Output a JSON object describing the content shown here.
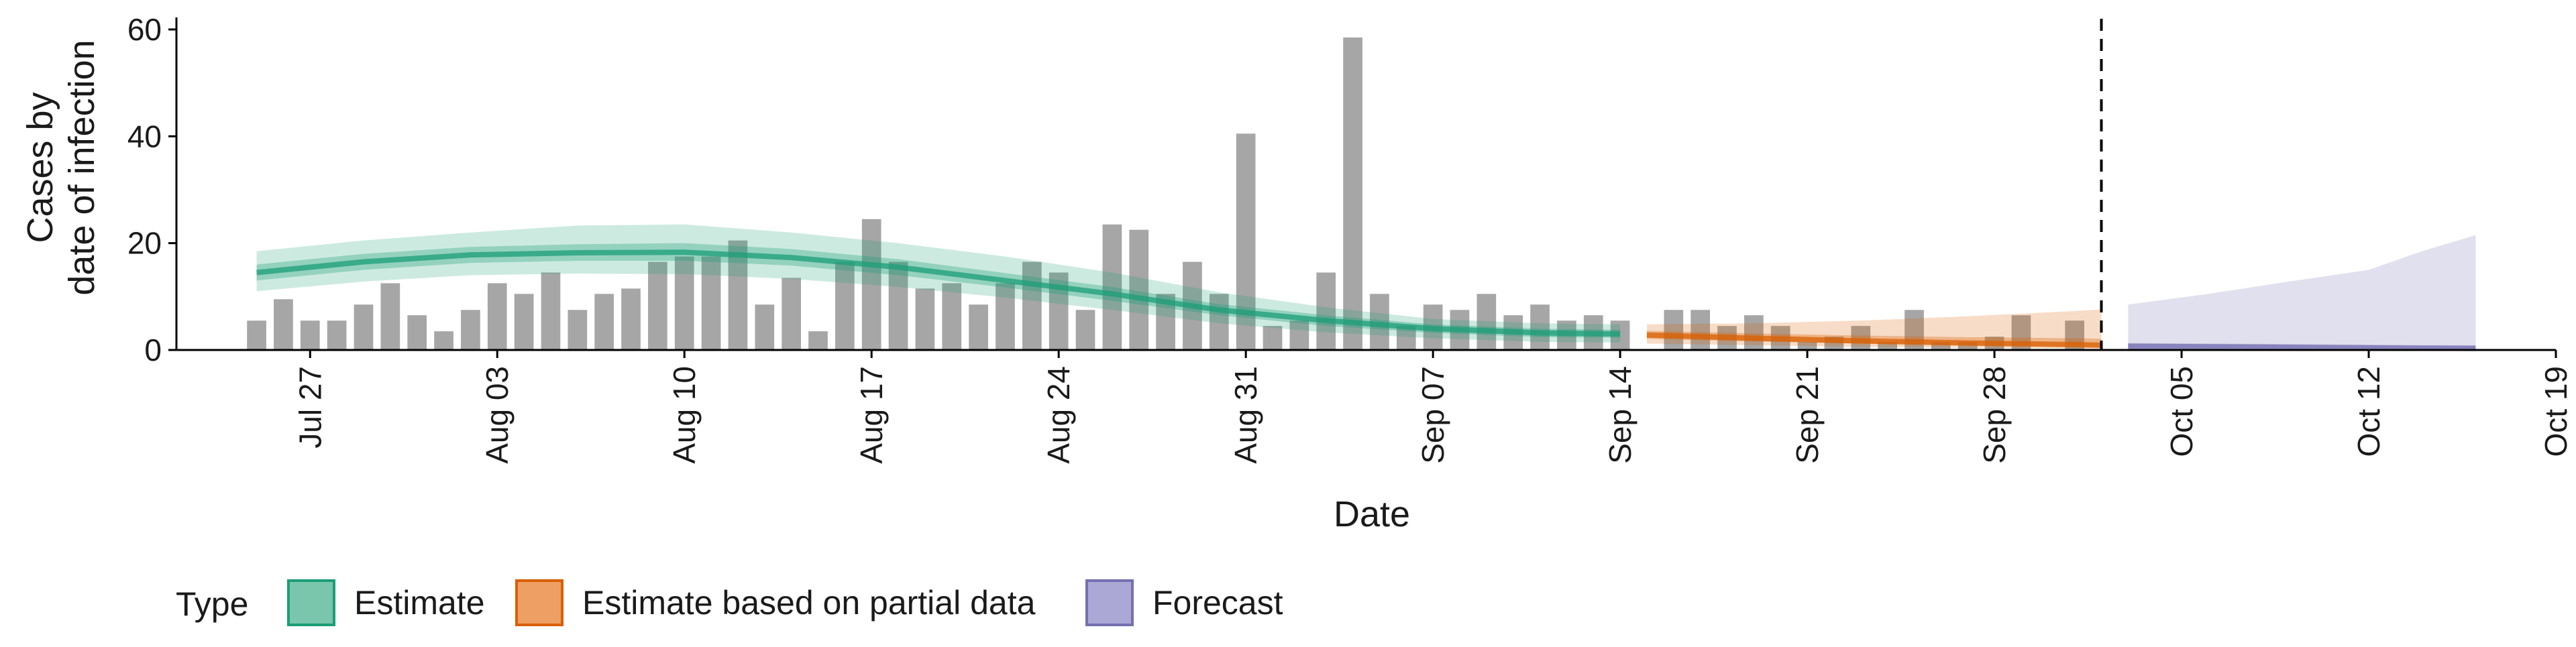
{
  "chart_data": {
    "type": "bar",
    "xlabel": "Date",
    "ylabel_lines": [
      "Cases by",
      "date of infection"
    ],
    "ylim": [
      0,
      62
    ],
    "y_ticks": [
      0,
      20,
      40,
      60
    ],
    "x_domain": [
      "2020-07-22",
      "2020-10-19"
    ],
    "x_ticks": [
      {
        "date": "2020-07-27",
        "label": "Jul 27"
      },
      {
        "date": "2020-08-03",
        "label": "Aug 03"
      },
      {
        "date": "2020-08-10",
        "label": "Aug 10"
      },
      {
        "date": "2020-08-17",
        "label": "Aug 17"
      },
      {
        "date": "2020-08-24",
        "label": "Aug 24"
      },
      {
        "date": "2020-08-31",
        "label": "Aug 31"
      },
      {
        "date": "2020-09-07",
        "label": "Sep 07"
      },
      {
        "date": "2020-09-14",
        "label": "Sep 14"
      },
      {
        "date": "2020-09-21",
        "label": "Sep 21"
      },
      {
        "date": "2020-09-28",
        "label": "Sep 28"
      },
      {
        "date": "2020-10-05",
        "label": "Oct 05"
      },
      {
        "date": "2020-10-12",
        "label": "Oct 12"
      },
      {
        "date": "2020-10-19",
        "label": "Oct 19"
      }
    ],
    "bars_start_date": "2020-07-25",
    "bar_values": [
      5.5,
      9.5,
      5.5,
      5.5,
      8.5,
      12.5,
      6.5,
      3.5,
      7.5,
      12.5,
      10.5,
      14.5,
      7.5,
      10.5,
      11.5,
      16.5,
      17.5,
      17.5,
      20.5,
      8.5,
      13.5,
      3.5,
      16.5,
      24.5,
      16.5,
      11.5,
      12.5,
      8.5,
      12.5,
      16.5,
      14.5,
      7.5,
      23.5,
      22.5,
      10.5,
      16.5,
      10.5,
      40.5,
      4.5,
      5.5,
      14.5,
      58.5,
      10.5,
      4.5,
      8.5,
      7.5,
      10.5,
      6.5,
      8.5,
      5.5,
      6.5,
      5.5,
      0,
      7.5,
      7.5,
      4.5,
      6.5,
      4.5,
      1.5,
      2.5,
      4.5,
      1.5,
      7.5,
      1.5,
      1.5,
      2.5,
      6.5,
      0,
      5.5
    ],
    "forecast_start_marker": "2020-10-02",
    "estimate": {
      "dates": [
        "2020-07-25",
        "2020-07-29",
        "2020-08-02",
        "2020-08-06",
        "2020-08-10",
        "2020-08-14",
        "2020-08-18",
        "2020-08-22",
        "2020-08-26",
        "2020-08-30",
        "2020-09-03",
        "2020-09-07",
        "2020-09-11",
        "2020-09-14"
      ],
      "median": [
        14.5,
        16.5,
        17.8,
        18.2,
        18.3,
        17.3,
        15.5,
        13.0,
        10.5,
        7.5,
        5.5,
        4.0,
        3.2,
        3.0
      ],
      "lower_90": [
        11.0,
        12.8,
        14.0,
        14.3,
        14.2,
        13.3,
        11.8,
        9.8,
        7.5,
        5.0,
        3.3,
        2.2,
        1.5,
        1.4
      ],
      "upper_90": [
        18.5,
        20.5,
        22.0,
        23.3,
        23.5,
        22.0,
        20.0,
        17.5,
        14.5,
        10.8,
        8.0,
        5.8,
        5.0,
        4.8
      ],
      "lower_50": [
        13.0,
        15.0,
        16.3,
        16.7,
        16.7,
        15.8,
        14.0,
        11.7,
        9.2,
        6.5,
        4.5,
        3.2,
        2.4,
        2.3
      ],
      "upper_50": [
        16.0,
        18.0,
        19.3,
        19.8,
        20.0,
        18.9,
        17.0,
        14.4,
        11.8,
        8.6,
        6.5,
        4.8,
        4.0,
        3.8
      ]
    },
    "partial_estimate": {
      "dates": [
        "2020-09-15",
        "2020-09-19",
        "2020-09-23",
        "2020-09-27",
        "2020-10-01",
        "2020-10-02"
      ],
      "median": [
        2.8,
        2.2,
        1.7,
        1.3,
        1.0,
        0.9
      ],
      "lower_90": [
        1.2,
        0.9,
        0.6,
        0.4,
        0.3,
        0.2
      ],
      "upper_90": [
        4.8,
        5.0,
        5.5,
        6.3,
        7.3,
        7.6
      ],
      "lower_50": [
        2.1,
        1.6,
        1.2,
        0.9,
        0.6,
        0.5
      ],
      "upper_50": [
        3.6,
        3.1,
        2.7,
        2.4,
        2.2,
        2.1
      ]
    },
    "forecast": {
      "dates": [
        "2020-10-03",
        "2020-10-06",
        "2020-10-09",
        "2020-10-12",
        "2020-10-14",
        "2020-10-16"
      ],
      "median": [
        0.7,
        0.6,
        0.5,
        0.4,
        0.35,
        0.3
      ],
      "lower_90": [
        0.1,
        0.1,
        0.05,
        0.05,
        0.05,
        0.05
      ],
      "upper_90": [
        8.5,
        10.5,
        12.8,
        15.0,
        18.5,
        21.5
      ],
      "lower_50": [
        0.4,
        0.35,
        0.3,
        0.25,
        0.2,
        0.2
      ],
      "upper_50": [
        1.3,
        1.2,
        1.1,
        1.0,
        0.9,
        0.9
      ]
    },
    "colors": {
      "bars": "#a6a6a6",
      "estimate": "#1b9e77",
      "partial": "#d95f02",
      "forecast": "#7570b3",
      "marker": "#000000",
      "axis": "#000000"
    },
    "legend": {
      "position": "bottom-left",
      "title": "Type",
      "items": [
        {
          "label": "Estimate",
          "fill": "#79c6ad",
          "border": "#1b9e77"
        },
        {
          "label": "Estimate based on partial data",
          "fill": "#eea064",
          "border": "#d95f02"
        },
        {
          "label": "Forecast",
          "fill": "#aba8d6",
          "border": "#7570b3"
        }
      ]
    },
    "grid": false
  }
}
